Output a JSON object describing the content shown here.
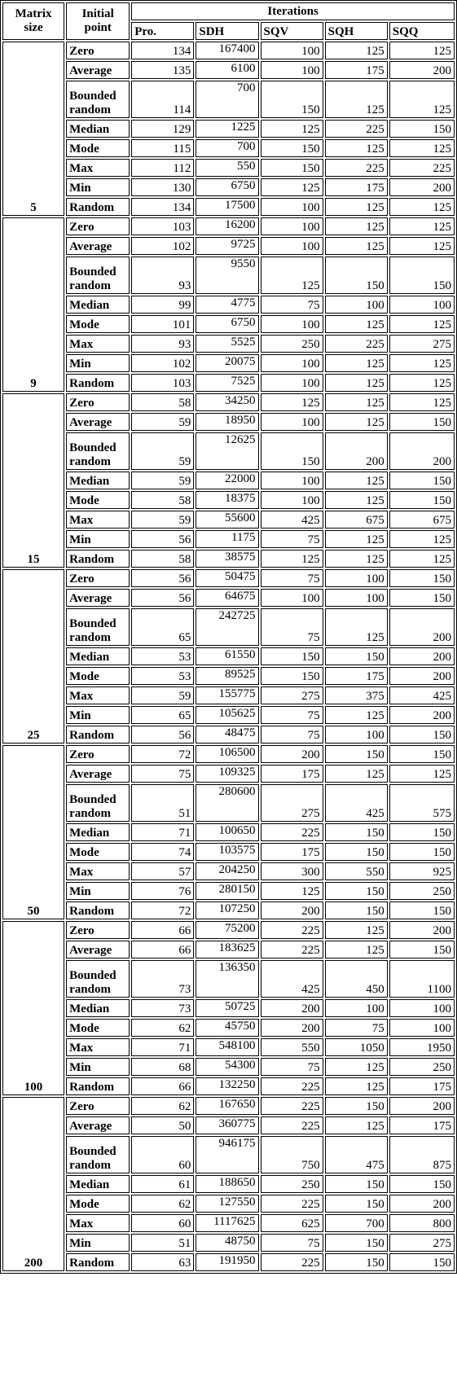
{
  "headers": {
    "matrix_size": "Matrix size",
    "initial_point": "Initial point",
    "iterations": "Iterations",
    "methods": [
      "Pro.",
      "SDH",
      "SQV",
      "SQH",
      "SQQ"
    ]
  },
  "groups": [
    {
      "size": "5",
      "rows": [
        {
          "point": "Zero",
          "values": [
            "134",
            "167400",
            "100",
            "125",
            "125"
          ]
        },
        {
          "point": "Average",
          "values": [
            "135",
            "6100",
            "100",
            "175",
            "200"
          ]
        },
        {
          "point": "Bounded random",
          "values": [
            "114",
            "700",
            "150",
            "125",
            "125"
          ]
        },
        {
          "point": "Median",
          "values": [
            "129",
            "1225",
            "125",
            "225",
            "150"
          ]
        },
        {
          "point": "Mode",
          "values": [
            "115",
            "700",
            "150",
            "125",
            "125"
          ]
        },
        {
          "point": "Max",
          "values": [
            "112",
            "550",
            "150",
            "225",
            "225"
          ]
        },
        {
          "point": "Min",
          "values": [
            "130",
            "6750",
            "125",
            "175",
            "200"
          ]
        },
        {
          "point": "Random",
          "values": [
            "134",
            "17500",
            "100",
            "125",
            "125"
          ]
        }
      ]
    },
    {
      "size": "9",
      "rows": [
        {
          "point": "Zero",
          "values": [
            "103",
            "16200",
            "100",
            "125",
            "125"
          ]
        },
        {
          "point": "Average",
          "values": [
            "102",
            "9725",
            "100",
            "125",
            "125"
          ]
        },
        {
          "point": "Bounded random",
          "values": [
            "93",
            "9550",
            "125",
            "150",
            "150"
          ]
        },
        {
          "point": "Median",
          "values": [
            "99",
            "4775",
            "75",
            "100",
            "100"
          ]
        },
        {
          "point": "Mode",
          "values": [
            "101",
            "6750",
            "100",
            "125",
            "125"
          ]
        },
        {
          "point": "Max",
          "values": [
            "93",
            "5525",
            "250",
            "225",
            "275"
          ]
        },
        {
          "point": "Min",
          "values": [
            "102",
            "20075",
            "100",
            "125",
            "125"
          ]
        },
        {
          "point": "Random",
          "values": [
            "103",
            "7525",
            "100",
            "125",
            "125"
          ]
        }
      ]
    },
    {
      "size": "15",
      "rows": [
        {
          "point": "Zero",
          "values": [
            "58",
            "34250",
            "125",
            "125",
            "125"
          ]
        },
        {
          "point": "Average",
          "values": [
            "59",
            "18950",
            "100",
            "125",
            "150"
          ]
        },
        {
          "point": "Bounded random",
          "values": [
            "59",
            "12625",
            "150",
            "200",
            "200"
          ]
        },
        {
          "point": "Median",
          "values": [
            "59",
            "22000",
            "100",
            "125",
            "150"
          ]
        },
        {
          "point": "Mode",
          "values": [
            "58",
            "18375",
            "100",
            "125",
            "150"
          ]
        },
        {
          "point": "Max",
          "values": [
            "59",
            "55600",
            "425",
            "675",
            "675"
          ]
        },
        {
          "point": "Min",
          "values": [
            "56",
            "1175",
            "75",
            "125",
            "125"
          ]
        },
        {
          "point": "Random",
          "values": [
            "58",
            "38575",
            "125",
            "125",
            "125"
          ]
        }
      ]
    },
    {
      "size": "25",
      "rows": [
        {
          "point": "Zero",
          "values": [
            "56",
            "50475",
            "75",
            "100",
            "150"
          ]
        },
        {
          "point": "Average",
          "values": [
            "56",
            "64675",
            "100",
            "100",
            "150"
          ]
        },
        {
          "point": "Bounded random",
          "values": [
            "65",
            "242725",
            "75",
            "125",
            "200"
          ]
        },
        {
          "point": "Median",
          "values": [
            "53",
            "61550",
            "150",
            "150",
            "200"
          ]
        },
        {
          "point": "Mode",
          "values": [
            "53",
            "89525",
            "150",
            "175",
            "200"
          ]
        },
        {
          "point": "Max",
          "values": [
            "59",
            "155775",
            "275",
            "375",
            "425"
          ]
        },
        {
          "point": "Min",
          "values": [
            "65",
            "105625",
            "75",
            "125",
            "200"
          ]
        },
        {
          "point": "Random",
          "values": [
            "56",
            "48475",
            "75",
            "100",
            "150"
          ]
        }
      ]
    },
    {
      "size": "50",
      "rows": [
        {
          "point": "Zero",
          "values": [
            "72",
            "106500",
            "200",
            "150",
            "150"
          ]
        },
        {
          "point": "Average",
          "values": [
            "75",
            "109325",
            "175",
            "125",
            "125"
          ]
        },
        {
          "point": "Bounded random",
          "values": [
            "51",
            "280600",
            "275",
            "425",
            "575"
          ]
        },
        {
          "point": "Median",
          "values": [
            "71",
            "100650",
            "225",
            "150",
            "150"
          ]
        },
        {
          "point": "Mode",
          "values": [
            "74",
            "103575",
            "175",
            "150",
            "150"
          ]
        },
        {
          "point": "Max",
          "values": [
            "57",
            "204250",
            "300",
            "550",
            "925"
          ]
        },
        {
          "point": "Min",
          "values": [
            "76",
            "280150",
            "125",
            "150",
            "250"
          ]
        },
        {
          "point": "Random",
          "values": [
            "72",
            "107250",
            "200",
            "150",
            "150"
          ]
        }
      ]
    },
    {
      "size": "100",
      "rows": [
        {
          "point": "Zero",
          "values": [
            "66",
            "75200",
            "225",
            "125",
            "200"
          ]
        },
        {
          "point": "Average",
          "values": [
            "66",
            "183625",
            "225",
            "125",
            "150"
          ]
        },
        {
          "point": "Bounded random",
          "values": [
            "73",
            "136350",
            "425",
            "450",
            "1100"
          ]
        },
        {
          "point": "Median",
          "values": [
            "73",
            "50725",
            "200",
            "100",
            "100"
          ]
        },
        {
          "point": "Mode",
          "values": [
            "62",
            "45750",
            "200",
            "75",
            "100"
          ]
        },
        {
          "point": "Max",
          "values": [
            "71",
            "548100",
            "550",
            "1050",
            "1950"
          ]
        },
        {
          "point": "Min",
          "values": [
            "68",
            "54300",
            "75",
            "125",
            "250"
          ]
        },
        {
          "point": "Random",
          "values": [
            "66",
            "132250",
            "225",
            "125",
            "175"
          ]
        }
      ]
    },
    {
      "size": "200",
      "rows": [
        {
          "point": "Zero",
          "values": [
            "62",
            "167650",
            "225",
            "150",
            "200"
          ]
        },
        {
          "point": "Average",
          "values": [
            "50",
            "360775",
            "225",
            "125",
            "175"
          ]
        },
        {
          "point": "Bounded random",
          "values": [
            "60",
            "946175",
            "750",
            "475",
            "875"
          ]
        },
        {
          "point": "Median",
          "values": [
            "61",
            "188650",
            "250",
            "150",
            "150"
          ]
        },
        {
          "point": "Mode",
          "values": [
            "62",
            "127550",
            "225",
            "150",
            "200"
          ]
        },
        {
          "point": "Max",
          "values": [
            "60",
            "1117625",
            "625",
            "700",
            "800"
          ]
        },
        {
          "point": "Min",
          "values": [
            "51",
            "48750",
            "75",
            "150",
            "275"
          ]
        },
        {
          "point": "Random",
          "values": [
            "63",
            "191950",
            "225",
            "150",
            "150"
          ]
        }
      ]
    }
  ]
}
